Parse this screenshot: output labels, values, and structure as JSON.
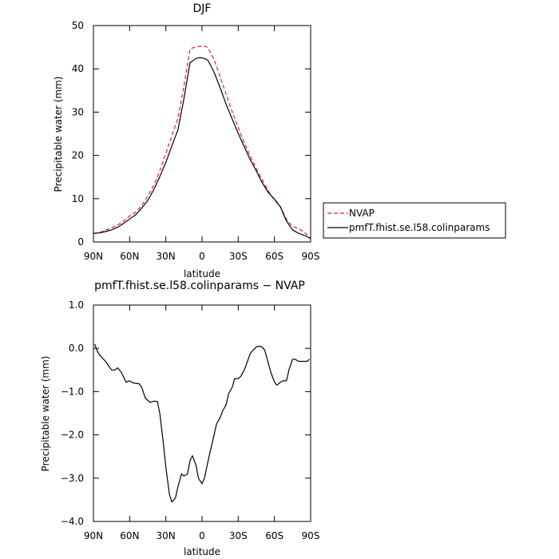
{
  "chart_data": [
    {
      "type": "line",
      "title": "DJF",
      "xlabel": "latitude",
      "ylabel": "Precipitable water  (mm)",
      "xlim": [
        90,
        -90
      ],
      "ylim": [
        0,
        50
      ],
      "xtick_values": [
        90,
        60,
        30,
        0,
        -30,
        -60,
        -90
      ],
      "xtick_labels": [
        "90N",
        "60N",
        "30N",
        "0",
        "30S",
        "60S",
        "90S"
      ],
      "ytick_values": [
        0,
        10,
        20,
        30,
        40,
        50
      ],
      "ytick_labels": [
        "0",
        "10",
        "20",
        "30",
        "40",
        "50"
      ],
      "legend_position": "right",
      "series": [
        {
          "name": "NVAP",
          "color": "#e0202a",
          "dash": "dashed",
          "x": [
            90,
            85,
            80,
            75,
            70,
            65,
            60,
            55,
            50,
            45,
            40,
            35,
            30,
            25,
            20,
            15,
            10,
            5,
            2,
            0,
            -3,
            -5,
            -10,
            -15,
            -20,
            -25,
            -30,
            -35,
            -40,
            -45,
            -50,
            -55,
            -60,
            -65,
            -70,
            -75,
            -80,
            -85,
            -90
          ],
          "y": [
            1.9,
            2.2,
            2.7,
            3.3,
            3.9,
            4.8,
            6.0,
            6.9,
            8.4,
            10.6,
            13.1,
            16.4,
            20.5,
            24.6,
            28.6,
            36.0,
            44.6,
            45.1,
            45.2,
            45.2,
            45.2,
            44.8,
            42.1,
            38.2,
            34.1,
            30.1,
            26.4,
            22.9,
            19.8,
            17.0,
            14.3,
            11.7,
            9.7,
            8.1,
            5.2,
            3.6,
            3.1,
            2.2,
            0.9
          ]
        },
        {
          "name": "pmfT.fhist.se.l58.colinparams",
          "color": "#000000",
          "dash": "solid",
          "x": [
            90,
            85,
            80,
            75,
            70,
            65,
            60,
            55,
            50,
            45,
            40,
            35,
            30,
            25,
            20,
            15,
            10,
            5,
            2,
            0,
            -3,
            -5,
            -10,
            -15,
            -20,
            -25,
            -30,
            -35,
            -40,
            -45,
            -50,
            -55,
            -60,
            -65,
            -70,
            -75,
            -80,
            -85,
            -90
          ],
          "y": [
            2.0,
            2.1,
            2.4,
            2.8,
            3.4,
            4.3,
            5.3,
            6.3,
            7.8,
            9.6,
            12.1,
            15.1,
            18.4,
            22.2,
            25.9,
            33.1,
            41.4,
            42.4,
            42.6,
            42.5,
            42.3,
            41.9,
            39.2,
            35.6,
            31.8,
            28.4,
            25.1,
            22.0,
            19.0,
            16.4,
            13.6,
            11.4,
            9.9,
            8.1,
            4.8,
            2.8,
            2.0,
            1.5,
            0.8
          ]
        }
      ]
    },
    {
      "type": "line",
      "title": "pmfT.fhist.se.l58.colinparams  −  NVAP",
      "xlabel": "latitude",
      "ylabel": "Precipitable water  (mm)",
      "xlim": [
        90,
        -90
      ],
      "ylim": [
        -4.0,
        1.0
      ],
      "xtick_values": [
        90,
        60,
        30,
        0,
        -30,
        -60,
        -90
      ],
      "xtick_labels": [
        "90N",
        "60N",
        "30N",
        "0",
        "30S",
        "60S",
        "90S"
      ],
      "ytick_values": [
        1.0,
        0.0,
        -1.0,
        -2.0,
        -3.0,
        -4.0
      ],
      "ytick_labels": [
        "1.0",
        "0.0",
        "−1.0",
        "−2.0",
        "−3.0",
        "−4.0"
      ],
      "series": [
        {
          "color": "#000000",
          "dash": "solid",
          "x": [
            89,
            87,
            85,
            80,
            75,
            72,
            70,
            67,
            63,
            60,
            57,
            52,
            50,
            47,
            43,
            40,
            37,
            35,
            32,
            30,
            27,
            25,
            22,
            20,
            17,
            15,
            12,
            10,
            8,
            5,
            3,
            0,
            -2,
            -5,
            -7,
            -10,
            -12,
            -15,
            -17,
            -20,
            -22,
            -25,
            -27,
            -30,
            -32,
            -35,
            -37,
            -40,
            -42,
            -45,
            -47,
            -50,
            -52,
            -55,
            -57,
            -60,
            -62,
            -65,
            -67,
            -70,
            -72,
            -75,
            -77,
            -80,
            -82,
            -85,
            -87,
            -89
          ],
          "y": [
            0.1,
            -0.05,
            -0.15,
            -0.3,
            -0.5,
            -0.5,
            -0.45,
            -0.55,
            -0.78,
            -0.75,
            -0.8,
            -0.82,
            -0.9,
            -1.15,
            -1.25,
            -1.22,
            -1.23,
            -1.5,
            -2.2,
            -2.75,
            -3.38,
            -3.55,
            -3.45,
            -3.2,
            -2.9,
            -2.95,
            -2.9,
            -2.6,
            -2.48,
            -2.7,
            -3.0,
            -3.13,
            -3.0,
            -2.6,
            -2.35,
            -2.0,
            -1.75,
            -1.6,
            -1.45,
            -1.3,
            -1.05,
            -0.9,
            -0.7,
            -0.7,
            -0.65,
            -0.5,
            -0.35,
            -0.12,
            -0.05,
            0.03,
            0.05,
            0.03,
            -0.05,
            -0.35,
            -0.55,
            -0.78,
            -0.85,
            -0.78,
            -0.75,
            -0.75,
            -0.5,
            -0.25,
            -0.25,
            -0.3,
            -0.3,
            -0.3,
            -0.3,
            -0.25
          ]
        }
      ]
    }
  ]
}
